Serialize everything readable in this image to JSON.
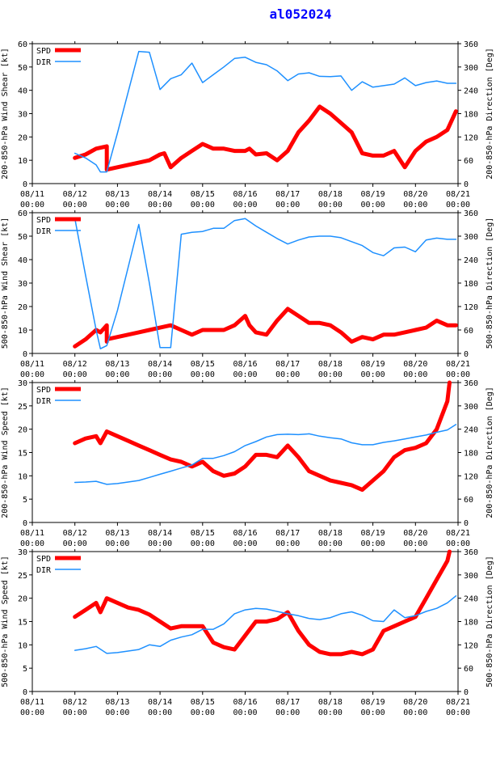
{
  "title": "al052024",
  "colors": {
    "spd": "#ff0000",
    "dir": "#1e90ff",
    "title": "#0000ff"
  },
  "x_tick_labels": [
    "08/11",
    "08/12",
    "08/13",
    "08/14",
    "08/15",
    "08/16",
    "08/17",
    "08/18",
    "08/19",
    "08/20",
    "08/21"
  ],
  "x_tick_time": "00:00",
  "chart_data": [
    {
      "type": "line",
      "ylabel_left": "200-850-hPa Wind Shear [kt]",
      "ylabel_right": "200-850-hPa Direction [Deg]",
      "ylim_left": [
        0,
        60
      ],
      "yticks_left": [
        0,
        10,
        20,
        30,
        40,
        50,
        60
      ],
      "ylim_right": [
        0,
        360
      ],
      "yticks_right": [
        0,
        60,
        120,
        180,
        240,
        300,
        360
      ],
      "xlim": [
        0,
        10
      ],
      "legend": [
        "SPD",
        "DIR"
      ],
      "series": [
        {
          "name": "SPD",
          "axis": "left",
          "x": [
            1.0,
            1.25,
            1.5,
            1.75,
            1.75,
            1.75,
            2.0,
            2.25,
            2.5,
            2.75,
            3.0,
            3.1,
            3.25,
            3.5,
            3.75,
            4.0,
            4.25,
            4.5,
            4.75,
            5.0,
            5.1,
            5.25,
            5.5,
            5.75,
            6.0,
            6.25,
            6.5,
            6.75,
            7.0,
            7.25,
            7.5,
            7.75,
            8.0,
            8.25,
            8.5,
            8.75,
            9.0,
            9.25,
            9.5,
            9.75,
            9.95
          ],
          "y": [
            11,
            12.5,
            15,
            16,
            8,
            6,
            7,
            8,
            9,
            10,
            12.5,
            13,
            7,
            11,
            14,
            17,
            15,
            15,
            14,
            14,
            15,
            12.5,
            13,
            10,
            14,
            22,
            27,
            33,
            30,
            26,
            22,
            13,
            12,
            12,
            14,
            7,
            14,
            18,
            20,
            23,
            31
          ]
        },
        {
          "name": "DIR",
          "axis": "right",
          "x": [
            1.0,
            1.25,
            1.5,
            1.6,
            1.75,
            2.0,
            2.5,
            2.75,
            3.0,
            3.25,
            3.5,
            3.75,
            4.0,
            4.25,
            4.5,
            4.75,
            5.0,
            5.25,
            5.5,
            5.75,
            6.0,
            6.25,
            6.5,
            6.75,
            7.0,
            7.25,
            7.5,
            7.75,
            8.0,
            8.25,
            8.5,
            8.75,
            9.0,
            9.25,
            9.5,
            9.75,
            9.95
          ],
          "y": [
            78,
            66,
            48,
            30,
            30,
            130,
            340,
            338,
            242,
            270,
            280,
            310,
            260,
            280,
            300,
            322,
            325,
            312,
            306,
            290,
            265,
            282,
            285,
            276,
            275,
            277,
            240,
            262,
            248,
            252,
            256,
            272,
            252,
            260,
            264,
            258,
            258
          ]
        }
      ]
    },
    {
      "type": "line",
      "ylabel_left": "500-850-hPa Wind Shear [kt]",
      "ylabel_right": "500-850-hPa Direction [Deg]",
      "ylim_left": [
        0,
        60
      ],
      "yticks_left": [
        0,
        10,
        20,
        30,
        40,
        50,
        60
      ],
      "ylim_right": [
        0,
        360
      ],
      "yticks_right": [
        0,
        60,
        120,
        180,
        240,
        300,
        360
      ],
      "xlim": [
        0,
        10
      ],
      "legend": [
        "SPD",
        "DIR"
      ],
      "series": [
        {
          "name": "SPD",
          "axis": "left",
          "x": [
            1.0,
            1.25,
            1.5,
            1.6,
            1.75,
            1.75,
            1.75,
            2.0,
            2.25,
            2.5,
            2.75,
            3.0,
            3.25,
            3.5,
            3.75,
            4.0,
            4.25,
            4.5,
            4.75,
            5.0,
            5.1,
            5.25,
            5.5,
            5.75,
            6.0,
            6.25,
            6.5,
            6.75,
            7.0,
            7.25,
            7.5,
            7.75,
            8.0,
            8.25,
            8.5,
            8.75,
            9.0,
            9.25,
            9.5,
            9.75,
            9.95
          ],
          "y": [
            3,
            6,
            10,
            9,
            12,
            5,
            6,
            7,
            8,
            9,
            10,
            11,
            12,
            10,
            8,
            10,
            10,
            10,
            12,
            16,
            12,
            9,
            8,
            14,
            19,
            16,
            13,
            13,
            12,
            9,
            5,
            7,
            6,
            8,
            8,
            9,
            10,
            11,
            14,
            12,
            12
          ]
        },
        {
          "name": "DIR",
          "axis": "right",
          "x": [
            1.0,
            1.25,
            1.5,
            1.6,
            1.75,
            2.0,
            2.5,
            2.75,
            3.0,
            3.25,
            3.5,
            3.75,
            4.0,
            4.25,
            4.5,
            4.75,
            5.0,
            5.25,
            5.5,
            5.75,
            6.0,
            6.25,
            6.5,
            6.75,
            7.0,
            7.25,
            7.5,
            7.75,
            8.0,
            8.25,
            8.5,
            8.75,
            9.0,
            9.25,
            9.5,
            9.75,
            9.95
          ],
          "y": [
            345,
            200,
            60,
            12,
            20,
            110,
            330,
            180,
            15,
            15,
            305,
            310,
            312,
            320,
            320,
            340,
            345,
            326,
            310,
            294,
            280,
            290,
            298,
            300,
            300,
            296,
            286,
            276,
            258,
            250,
            270,
            272,
            260,
            290,
            295,
            292,
            292
          ]
        }
      ]
    },
    {
      "type": "line",
      "ylabel_left": "200-850-hPa Wind Speed [kt]",
      "ylabel_right": "200-850-hPa Direction [Deg]",
      "ylim_left": [
        0,
        30
      ],
      "yticks_left": [
        0,
        5,
        10,
        15,
        20,
        25,
        30
      ],
      "ylim_right": [
        0,
        360
      ],
      "yticks_right": [
        0,
        60,
        120,
        180,
        240,
        300,
        360
      ],
      "xlim": [
        0,
        10
      ],
      "legend": [
        "SPD",
        "DIR"
      ],
      "series": [
        {
          "name": "SPD",
          "axis": "left",
          "x": [
            1.0,
            1.25,
            1.5,
            1.6,
            1.75,
            2.0,
            2.25,
            2.5,
            2.75,
            3.0,
            3.25,
            3.5,
            3.75,
            4.0,
            4.25,
            4.5,
            4.75,
            5.0,
            5.25,
            5.5,
            5.75,
            6.0,
            6.25,
            6.5,
            6.75,
            7.0,
            7.25,
            7.5,
            7.75,
            8.0,
            8.25,
            8.5,
            8.75,
            9.0,
            9.25,
            9.5,
            9.75,
            9.8
          ],
          "y": [
            17,
            18,
            18.5,
            17,
            19.5,
            18.5,
            17.5,
            16.5,
            15.5,
            14.5,
            13.5,
            13,
            12,
            13,
            11,
            10,
            10.5,
            12,
            14.5,
            14.5,
            14,
            16.5,
            14,
            11,
            10,
            9,
            8.5,
            8,
            7,
            9,
            11,
            14,
            15.5,
            16,
            17,
            20,
            26,
            30
          ]
        },
        {
          "name": "DIR",
          "axis": "right",
          "x": [
            1.0,
            1.25,
            1.5,
            1.75,
            1.75,
            2.0,
            2.5,
            2.75,
            3.0,
            3.25,
            3.5,
            3.75,
            4.0,
            4.25,
            4.5,
            4.75,
            5.0,
            5.25,
            5.5,
            5.75,
            6.0,
            6.25,
            6.5,
            6.75,
            7.0,
            7.25,
            7.5,
            7.75,
            8.0,
            8.25,
            8.5,
            8.75,
            9.0,
            9.25,
            9.5,
            9.75,
            9.95
          ],
          "y": [
            103,
            104,
            106,
            98,
            98,
            100,
            108,
            116,
            124,
            132,
            140,
            148,
            165,
            165,
            172,
            182,
            198,
            208,
            220,
            226,
            227,
            226,
            228,
            222,
            218,
            215,
            205,
            200,
            200,
            206,
            210,
            215,
            220,
            225,
            232,
            238,
            252
          ]
        }
      ]
    },
    {
      "type": "line",
      "ylabel_left": "500-850-hPa Wind Speed [kt]",
      "ylabel_right": "500-850-hPa Direction [Deg]",
      "ylim_left": [
        0,
        30
      ],
      "yticks_left": [
        0,
        5,
        10,
        15,
        20,
        25,
        30
      ],
      "ylim_right": [
        0,
        360
      ],
      "yticks_right": [
        0,
        60,
        120,
        180,
        240,
        300,
        360
      ],
      "xlim": [
        0,
        10
      ],
      "legend": [
        "SPD",
        "DIR"
      ],
      "series": [
        {
          "name": "SPD",
          "axis": "left",
          "x": [
            1.0,
            1.25,
            1.5,
            1.6,
            1.75,
            2.0,
            2.25,
            2.5,
            2.75,
            3.0,
            3.25,
            3.5,
            3.75,
            4.0,
            4.25,
            4.5,
            4.75,
            5.0,
            5.25,
            5.5,
            5.75,
            6.0,
            6.25,
            6.5,
            6.75,
            7.0,
            7.25,
            7.5,
            7.75,
            8.0,
            8.25,
            8.5,
            8.75,
            9.0,
            9.25,
            9.5,
            9.75,
            9.8
          ],
          "y": [
            16,
            17.5,
            19,
            17,
            20,
            19,
            18,
            17.5,
            16.5,
            15,
            13.5,
            14,
            14,
            14,
            10.5,
            9.5,
            9,
            12,
            15,
            15,
            15.5,
            17,
            13,
            10,
            8.5,
            8,
            8,
            8.5,
            8,
            9,
            13,
            14,
            15,
            16,
            20,
            24,
            28,
            30
          ]
        },
        {
          "name": "DIR",
          "axis": "right",
          "x": [
            1.0,
            1.25,
            1.5,
            1.75,
            1.75,
            2.0,
            2.5,
            2.75,
            3.0,
            3.25,
            3.5,
            3.75,
            4.0,
            4.25,
            4.5,
            4.75,
            5.0,
            5.25,
            5.5,
            5.75,
            6.0,
            6.25,
            6.5,
            6.75,
            7.0,
            7.25,
            7.5,
            7.75,
            8.0,
            8.25,
            8.5,
            8.75,
            9.0,
            9.25,
            9.5,
            9.75,
            9.95
          ],
          "y": [
            106,
            110,
            116,
            98,
            98,
            100,
            108,
            120,
            116,
            132,
            140,
            146,
            160,
            160,
            174,
            200,
            210,
            214,
            212,
            206,
            200,
            195,
            188,
            185,
            190,
            200,
            205,
            196,
            182,
            180,
            210,
            190,
            195,
            206,
            214,
            228,
            246
          ]
        }
      ]
    }
  ]
}
